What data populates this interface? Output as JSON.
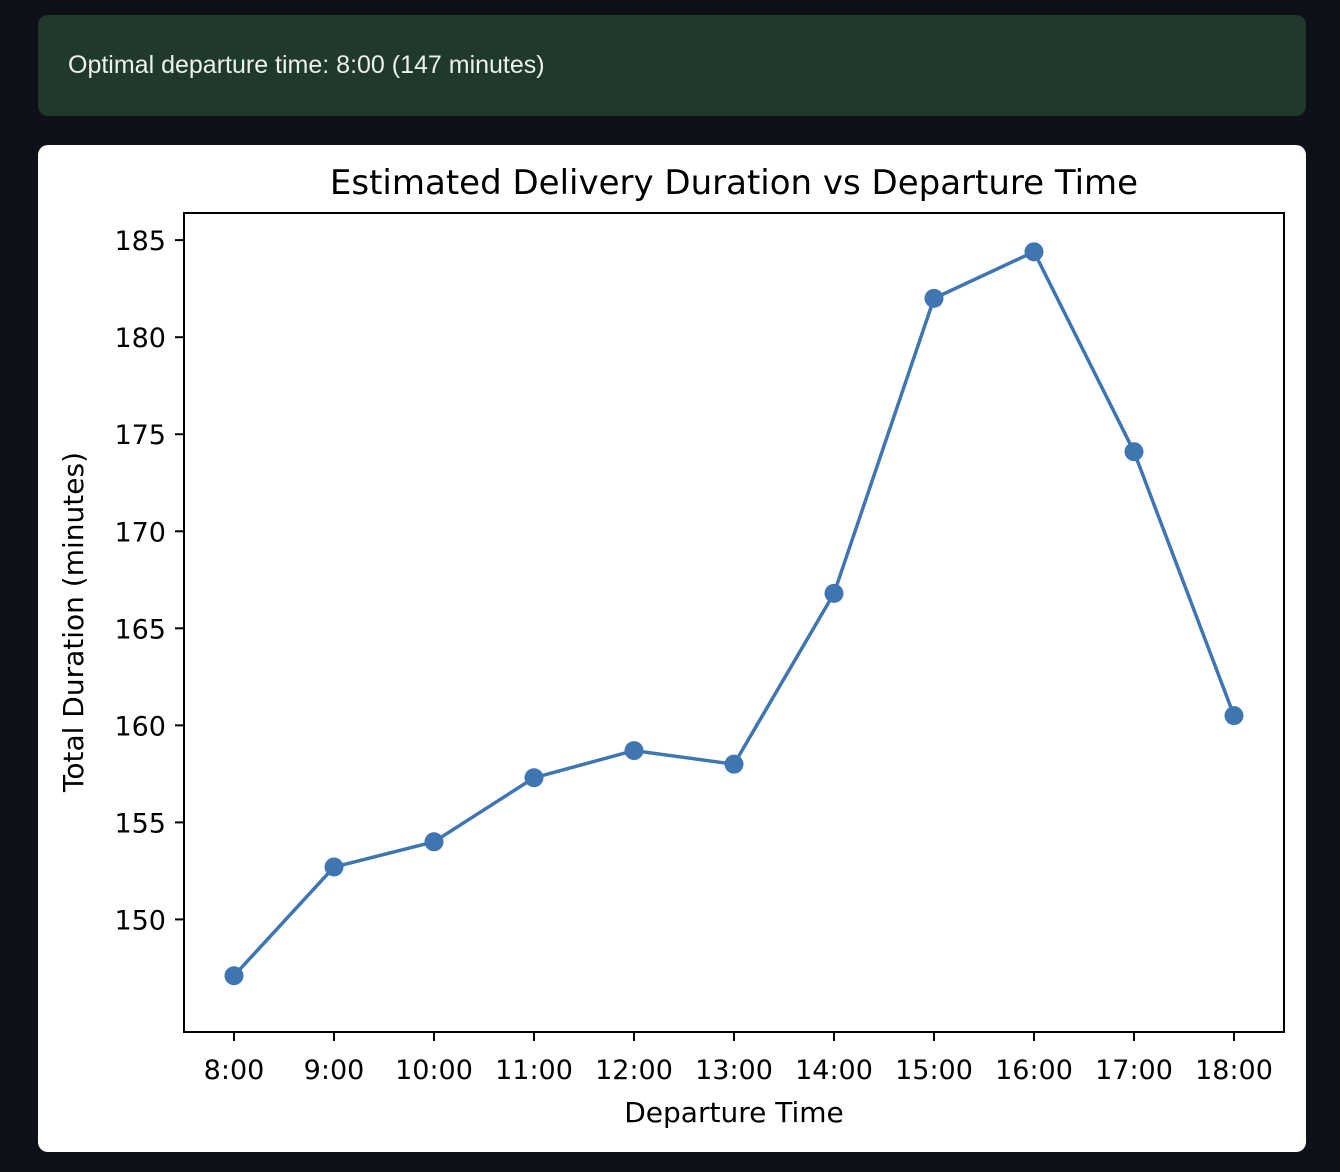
{
  "alert": {
    "message": "Optimal departure time: 8:00 (147 minutes)"
  },
  "colors": {
    "page_background": "#0e1117",
    "alert_background": "#21392b",
    "alert_text": "#e9f3ea",
    "series_line": "#3f76b2"
  },
  "chart_data": {
    "type": "line",
    "title": "Estimated Delivery Duration vs Departure Time",
    "xlabel": "Departure Time",
    "ylabel": "Total Duration (minutes)",
    "categories": [
      "8:00",
      "9:00",
      "10:00",
      "11:00",
      "12:00",
      "13:00",
      "14:00",
      "15:00",
      "16:00",
      "17:00",
      "18:00"
    ],
    "values": [
      147.1,
      152.7,
      154.0,
      157.3,
      158.7,
      158.0,
      166.8,
      182.0,
      184.4,
      174.1,
      160.5
    ],
    "yticks": [
      150,
      155,
      160,
      165,
      170,
      175,
      180,
      185
    ],
    "ylim": [
      144.2,
      186.4
    ],
    "grid": false,
    "markers": true
  }
}
